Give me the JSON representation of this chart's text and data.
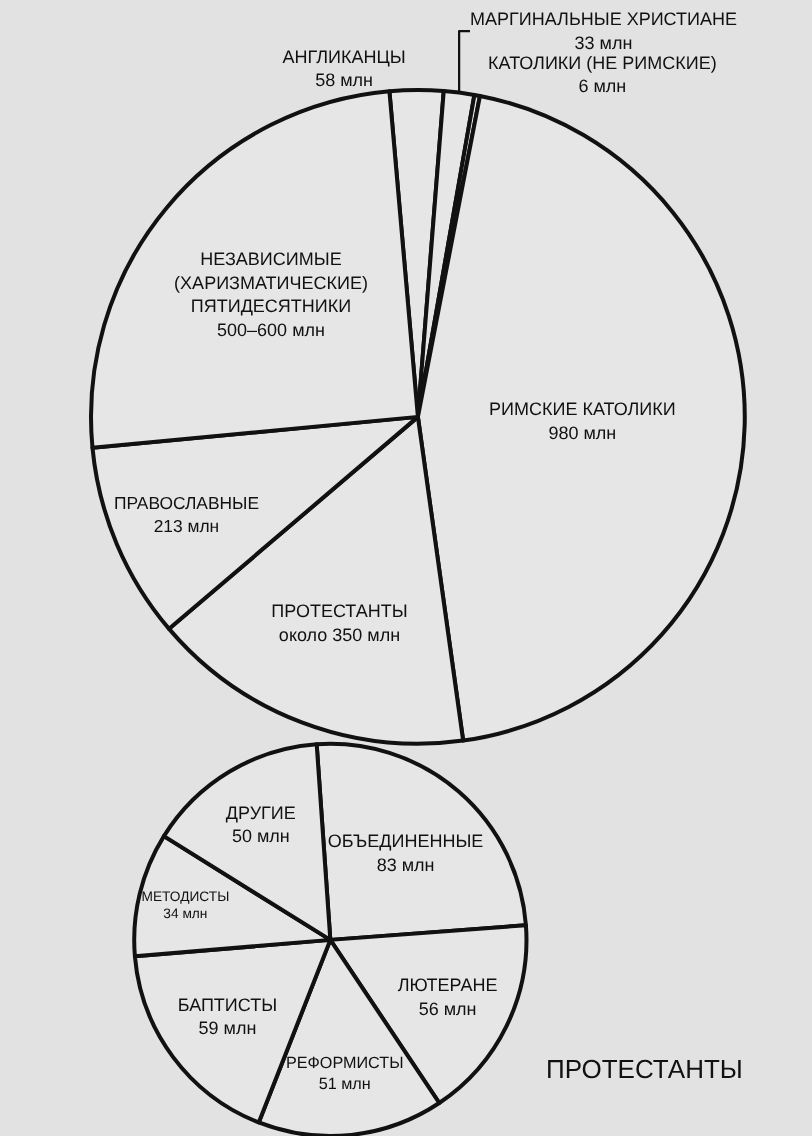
{
  "chart_data": [
    {
      "type": "pie",
      "categories": [
        "АНГЛИКАНЦЫ",
        "МАРГИНАЛЬНЫЕ ХРИСТИАНЕ",
        "КАТОЛИКИ (НЕ РИМСКИЕ)",
        "РИМСКИЕ КАТОЛИКИ",
        "ПРОТЕСТАНТЫ",
        "ПРАВОСЛАВНЫЕ",
        "НЕЗАВИСИМЫЕ (ХАРИЗМАТИЧЕСКИЕ) ПЯТИДЕСЯТНИКИ"
      ],
      "values": [
        58,
        33,
        6,
        980,
        350,
        213,
        550
      ],
      "value_labels": [
        "58 млн",
        "33 млн",
        "6 млн",
        "980 млн",
        "около 350 млн",
        "213 млн",
        "500–600 млн"
      ],
      "colors": [
        "#e6e6e6",
        "#e6e6e6",
        "#e6e6e6",
        "#e6e6e6",
        "#e6e6e6",
        "#e6e6e6",
        "#e6e6e6"
      ],
      "legend": false
    },
    {
      "type": "pie",
      "title": "ПРОТЕСТАНТЫ",
      "categories": [
        "ОБЪЕДИНЕННЫЕ",
        "ЛЮТЕРАНЕ",
        "РЕФОРМИСТЫ",
        "БАПТИСТЫ",
        "МЕТОДИСТЫ",
        "ДРУГИЕ"
      ],
      "values": [
        83,
        56,
        51,
        59,
        34,
        50
      ],
      "value_labels": [
        "83 млн",
        "56 млн",
        "51 млн",
        "59 млн",
        "34 млн",
        "50 млн"
      ],
      "colors": [
        "#e6e6e6",
        "#e6e6e6",
        "#e6e6e6",
        "#e6e6e6",
        "#e6e6e6",
        "#e6e6e6"
      ],
      "legend": false
    }
  ]
}
